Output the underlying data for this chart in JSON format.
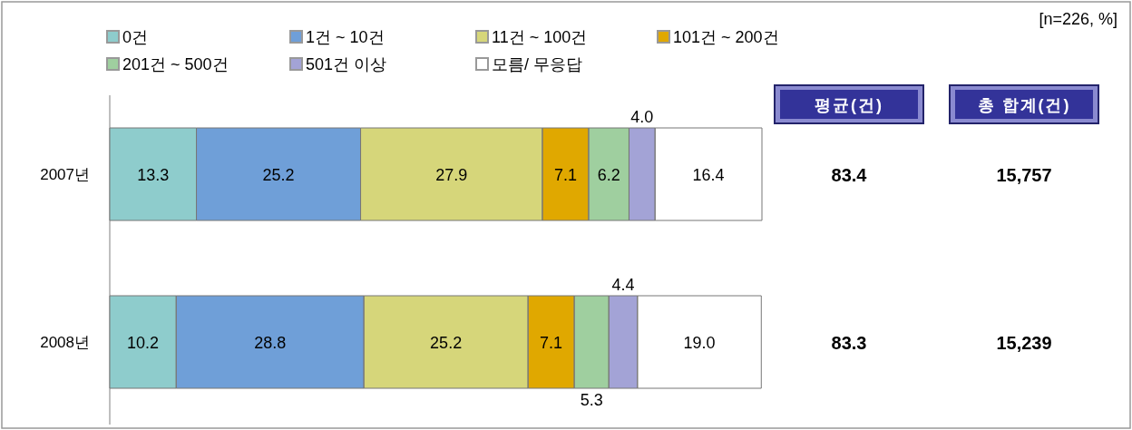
{
  "chart_data": [
    {
      "type": "bar",
      "orientation": "horizontal",
      "stacked": true,
      "legend": "top left",
      "categories": [
        "2007년",
        "2008년"
      ],
      "series": [
        {
          "name": "0건",
          "color": "#8ecccc",
          "values": [
            13.3,
            10.2
          ],
          "value_labels": [
            "13.3",
            "10.2"
          ]
        },
        {
          "name": "1건 ~ 10건",
          "color": "#6f9fd8",
          "values": [
            25.2,
            28.8
          ],
          "value_labels": [
            "25.2",
            "28.8"
          ]
        },
        {
          "name": "11건 ~ 100건",
          "color": "#d6d67a",
          "values": [
            27.9,
            25.2
          ],
          "value_labels": [
            "27.9",
            "25.2"
          ]
        },
        {
          "name": "101건 ~ 200건",
          "color": "#e0a800",
          "values": [
            7.1,
            7.1
          ],
          "value_labels": [
            "7.1",
            "7.1"
          ]
        },
        {
          "name": "201건 ~ 500건",
          "color": "#9fcf9f",
          "values": [
            6.2,
            5.3
          ],
          "value_labels": [
            "6.2",
            "5.3"
          ]
        },
        {
          "name": "501건 이상",
          "color": "#a3a3d6",
          "values": [
            4.0,
            4.4
          ],
          "value_labels": [
            "4.0",
            "4.4"
          ]
        },
        {
          "name": "모름/ 무응답",
          "color": "#ffffff",
          "values": [
            16.4,
            19.0
          ],
          "value_labels": [
            "16.4",
            "19.0"
          ]
        }
      ],
      "annotations": [
        "[n=226, %]"
      ]
    },
    {
      "type": "other",
      "categories": [
        "평균(건)",
        "총 합계(건)"
      ],
      "series": [
        {
          "values": [
            83.4,
            15757
          ],
          "value_labels": [
            "83.4",
            "15,757"
          ]
        },
        {
          "values": [
            83.3,
            15239
          ],
          "value_labels": [
            "83.3",
            "15,239"
          ]
        }
      ]
    }
  ]
}
